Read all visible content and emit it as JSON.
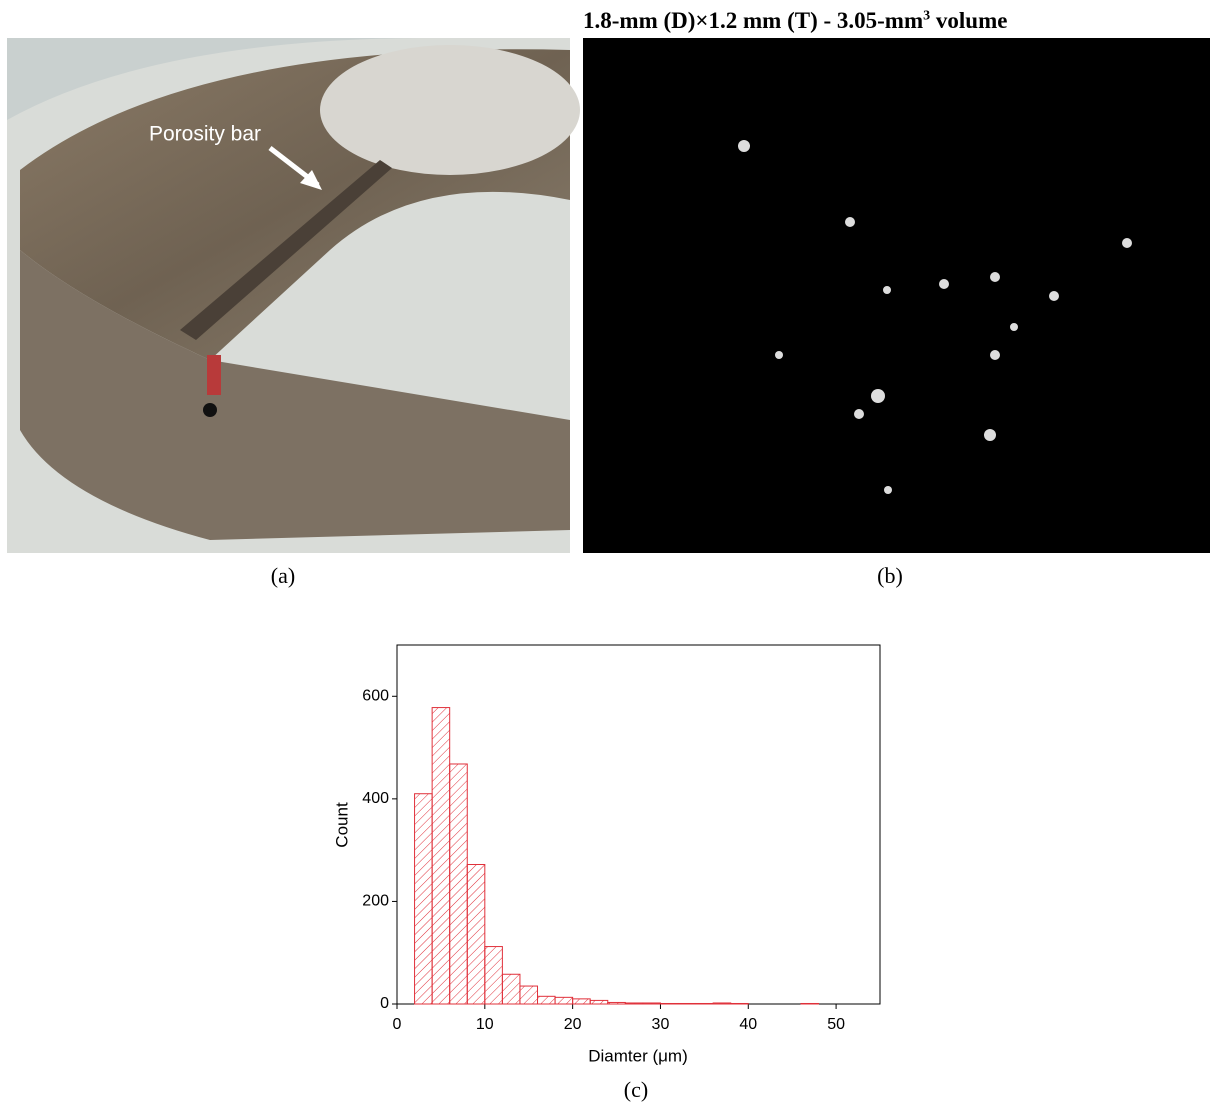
{
  "panel_a": {
    "annotation": "Porosity bar",
    "label": "(a)"
  },
  "panel_b": {
    "title_main": "1.8-mm (D)×1.2 mm (T) - 3.05-mm",
    "title_sup": "3",
    "title_end": " volume",
    "label": "(b)"
  },
  "panel_c": {
    "label": "(c)"
  },
  "chart_data": {
    "type": "histogram",
    "x_label": "Diamter (μm)",
    "y_label": "Count",
    "bins": [
      2,
      4,
      6,
      8,
      10,
      12,
      14,
      16,
      18,
      20,
      22,
      24,
      26,
      28,
      30,
      32,
      34,
      36,
      38,
      40,
      42,
      44,
      46,
      48,
      50
    ],
    "counts": [
      410,
      578,
      468,
      272,
      112,
      58,
      35,
      15,
      13,
      10,
      7,
      3,
      2,
      2,
      1,
      1,
      1,
      2,
      1,
      0,
      0,
      0,
      1,
      0
    ],
    "color": "#e0303a",
    "xlim": [
      0,
      55
    ],
    "xticks": [
      0,
      10,
      20,
      30,
      40,
      50
    ],
    "ylim": [
      0,
      700
    ],
    "yticks": [
      0,
      200,
      400,
      600
    ]
  }
}
